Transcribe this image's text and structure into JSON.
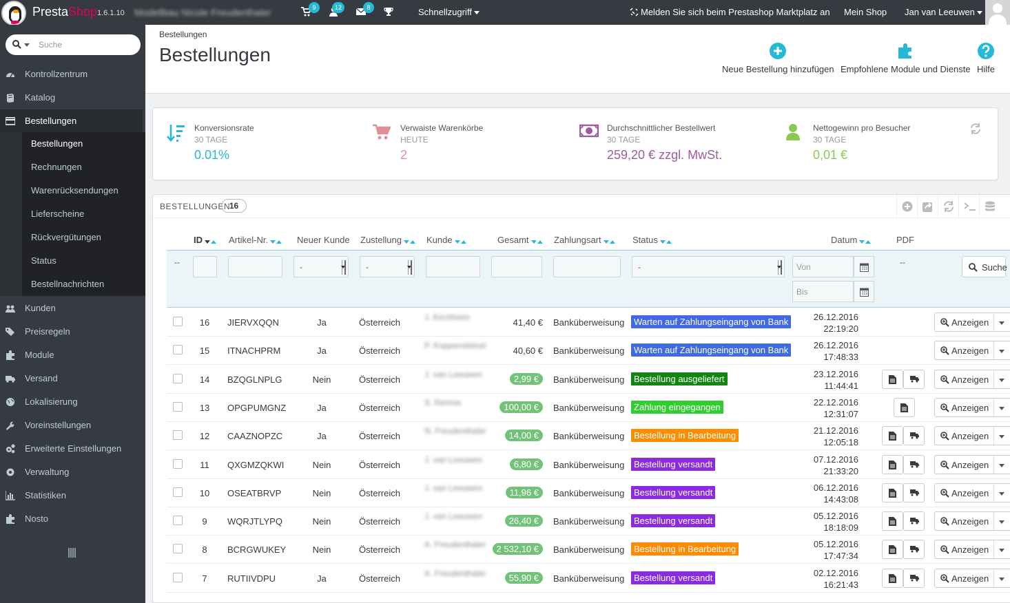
{
  "topbar": {
    "brand_presta": "Presta",
    "brand_shop": "Shop",
    "version": "1.6.1.10",
    "shop_name": "Modellbau Nicole Freudenthaler",
    "badge_orders": "9",
    "badge_customers": "12",
    "badge_messages": "8",
    "quick_access": "Schnellzugriff",
    "marketplace": "Melden Sie sich beim Prestashop Marktplatz an",
    "my_shop": "Mein Shop",
    "user": "Jan van Leeuwen"
  },
  "sidebar": {
    "search_placeholder": "Suche",
    "items": [
      {
        "label": "Kontrollzentrum",
        "icon": "dashboard-icon"
      },
      {
        "label": "Katalog",
        "icon": "book-icon"
      },
      {
        "label": "Bestellungen",
        "icon": "credit-card-icon"
      },
      {
        "label": "Kunden",
        "icon": "users-icon"
      },
      {
        "label": "Preisregeln",
        "icon": "tags-icon"
      },
      {
        "label": "Module",
        "icon": "puzzle-icon"
      },
      {
        "label": "Versand",
        "icon": "truck-icon"
      },
      {
        "label": "Lokalisierung",
        "icon": "globe-icon"
      },
      {
        "label": "Voreinstellungen",
        "icon": "wrench-icon"
      },
      {
        "label": "Erweiterte Einstellungen",
        "icon": "cogs-icon"
      },
      {
        "label": "Verwaltung",
        "icon": "gear-icon"
      },
      {
        "label": "Statistiken",
        "icon": "bar-chart-icon"
      },
      {
        "label": "Nosto",
        "icon": "puzzle-icon"
      }
    ],
    "subitems": [
      "Bestellungen",
      "Rechnungen",
      "Warenrücksendungen",
      "Lieferscheine",
      "Rückvergütungen",
      "Status",
      "Bestellnachrichten"
    ]
  },
  "header": {
    "breadcrumb": "Bestellungen",
    "title": "Bestellungen",
    "tool_new": "Neue Bestellung hinzufügen",
    "tool_modules": "Empfohlene Module und Dienste",
    "tool_help": "Hilfe"
  },
  "kpis": [
    {
      "title": "Konversionsrate",
      "period": "30 TAGE",
      "value": "0.01%",
      "color": "#25b9d7"
    },
    {
      "title": "Verwaiste Warenkörbe",
      "period": "HEUTE",
      "value": "2",
      "color": "#e08f95"
    },
    {
      "title": "Durchschnittlicher Bestellwert",
      "period": "30 TAGE",
      "value": "259,20 € zzgl. MwSt.",
      "color": "#9e5ba1"
    },
    {
      "title": "Nettogewinn pro Besucher",
      "period": "30 TAGE",
      "value": "0,01 €",
      "color": "#8bc954"
    }
  ],
  "orders": {
    "title": "BESTELLUNGEN",
    "count": "16",
    "columns": {
      "id": "ID",
      "ref": "Artikel-Nr.",
      "new": "Neuer Kunde",
      "delivery": "Zustellung",
      "customer": "Kunde",
      "total": "Gesamt",
      "payment": "Zahlungsart",
      "status": "Status",
      "date": "Datum",
      "pdf": "PDF"
    },
    "filters": {
      "dash": "--",
      "select_default": "-",
      "from": "Von",
      "to": "Bis",
      "search": "Suche",
      "pdf_dash": "--"
    },
    "view_label": "Anzeigen",
    "rows": [
      {
        "id": "16",
        "ref": "JIERVXQQN",
        "new": "Ja",
        "country": "Österreich",
        "customer": "J. Kirchheim",
        "total": "41,40 €",
        "paid": false,
        "payment": "Banküberweisung",
        "status": "Warten auf Zahlungseingang von Bank",
        "status_color": "#4169e1",
        "date": "26.12.2016",
        "time": "22:19:20",
        "pdf": 0
      },
      {
        "id": "15",
        "ref": "ITNACHPRM",
        "new": "Ja",
        "country": "Österreich",
        "customer": "P. Koppensteiner",
        "total": "40,60 €",
        "paid": false,
        "payment": "Banküberweisung",
        "status": "Warten auf Zahlungseingang von Bank",
        "status_color": "#4169e1",
        "date": "26.12.2016",
        "time": "17:48:33",
        "pdf": 0
      },
      {
        "id": "14",
        "ref": "BZQGLNPLG",
        "new": "Nein",
        "country": "Österreich",
        "customer": "J. van Leeuwen",
        "total": "2,99 €",
        "paid": true,
        "payment": "Banküberweisung",
        "status": "Bestellung ausgeliefert",
        "status_color": "#108510",
        "date": "23.12.2016",
        "time": "11:44:41",
        "pdf": 2
      },
      {
        "id": "13",
        "ref": "OPGPUMGNZ",
        "new": "Ja",
        "country": "Österreich",
        "customer": "S. Renner",
        "total": "100,00 €",
        "paid": true,
        "payment": "Banküberweisung",
        "status": "Zahlung eingegangen",
        "status_color": "#32cd32",
        "date": "22.12.2016",
        "time": "12:31:07",
        "pdf": 1
      },
      {
        "id": "12",
        "ref": "CAAZNOPZC",
        "new": "Ja",
        "country": "Österreich",
        "customer": "N. Freudenthaler",
        "total": "14,00 €",
        "paid": true,
        "payment": "Banküberweisung",
        "status": "Bestellung in Bearbeitung",
        "status_color": "#ff8c00",
        "date": "21.12.2016",
        "time": "12:05:18",
        "pdf": 2
      },
      {
        "id": "11",
        "ref": "QXGMZQKWI",
        "new": "Nein",
        "country": "Österreich",
        "customer": "J. van Leeuwen",
        "total": "6,80 €",
        "paid": true,
        "payment": "Banküberweisung",
        "status": "Bestellung versandt",
        "status_color": "#8a2be2",
        "date": "07.12.2016",
        "time": "21:33:20",
        "pdf": 2
      },
      {
        "id": "10",
        "ref": "OSEATBRVP",
        "new": "Nein",
        "country": "Österreich",
        "customer": "J. van Leeuwen",
        "total": "11,96 €",
        "paid": true,
        "payment": "Banküberweisung",
        "status": "Bestellung versandt",
        "status_color": "#8a2be2",
        "date": "06.12.2016",
        "time": "14:43:08",
        "pdf": 2
      },
      {
        "id": "9",
        "ref": "WQRJTLYPQ",
        "new": "Nein",
        "country": "Österreich",
        "customer": "J. van Leeuwen",
        "total": "26,40 €",
        "paid": true,
        "payment": "Banküberweisung",
        "status": "Bestellung versandt",
        "status_color": "#8a2be2",
        "date": "05.12.2016",
        "time": "18:18:09",
        "pdf": 2
      },
      {
        "id": "8",
        "ref": "BCRGWUKEY",
        "new": "Nein",
        "country": "Österreich",
        "customer": "A. Freudenthaler",
        "total": "2 532,10 €",
        "paid": true,
        "payment": "Banküberweisung",
        "status": "Bestellung in Bearbeitung",
        "status_color": "#ff8c00",
        "date": "05.12.2016",
        "time": "17:47:34",
        "pdf": 2
      },
      {
        "id": "7",
        "ref": "RUTIIVDPU",
        "new": "Ja",
        "country": "Österreich",
        "customer": "A. Freudenthaler",
        "total": "55,90 €",
        "paid": true,
        "payment": "Banküberweisung",
        "status": "Bestellung versandt",
        "status_color": "#8a2be2",
        "date": "02.12.2016",
        "time": "16:21:43",
        "pdf": 2
      }
    ]
  }
}
